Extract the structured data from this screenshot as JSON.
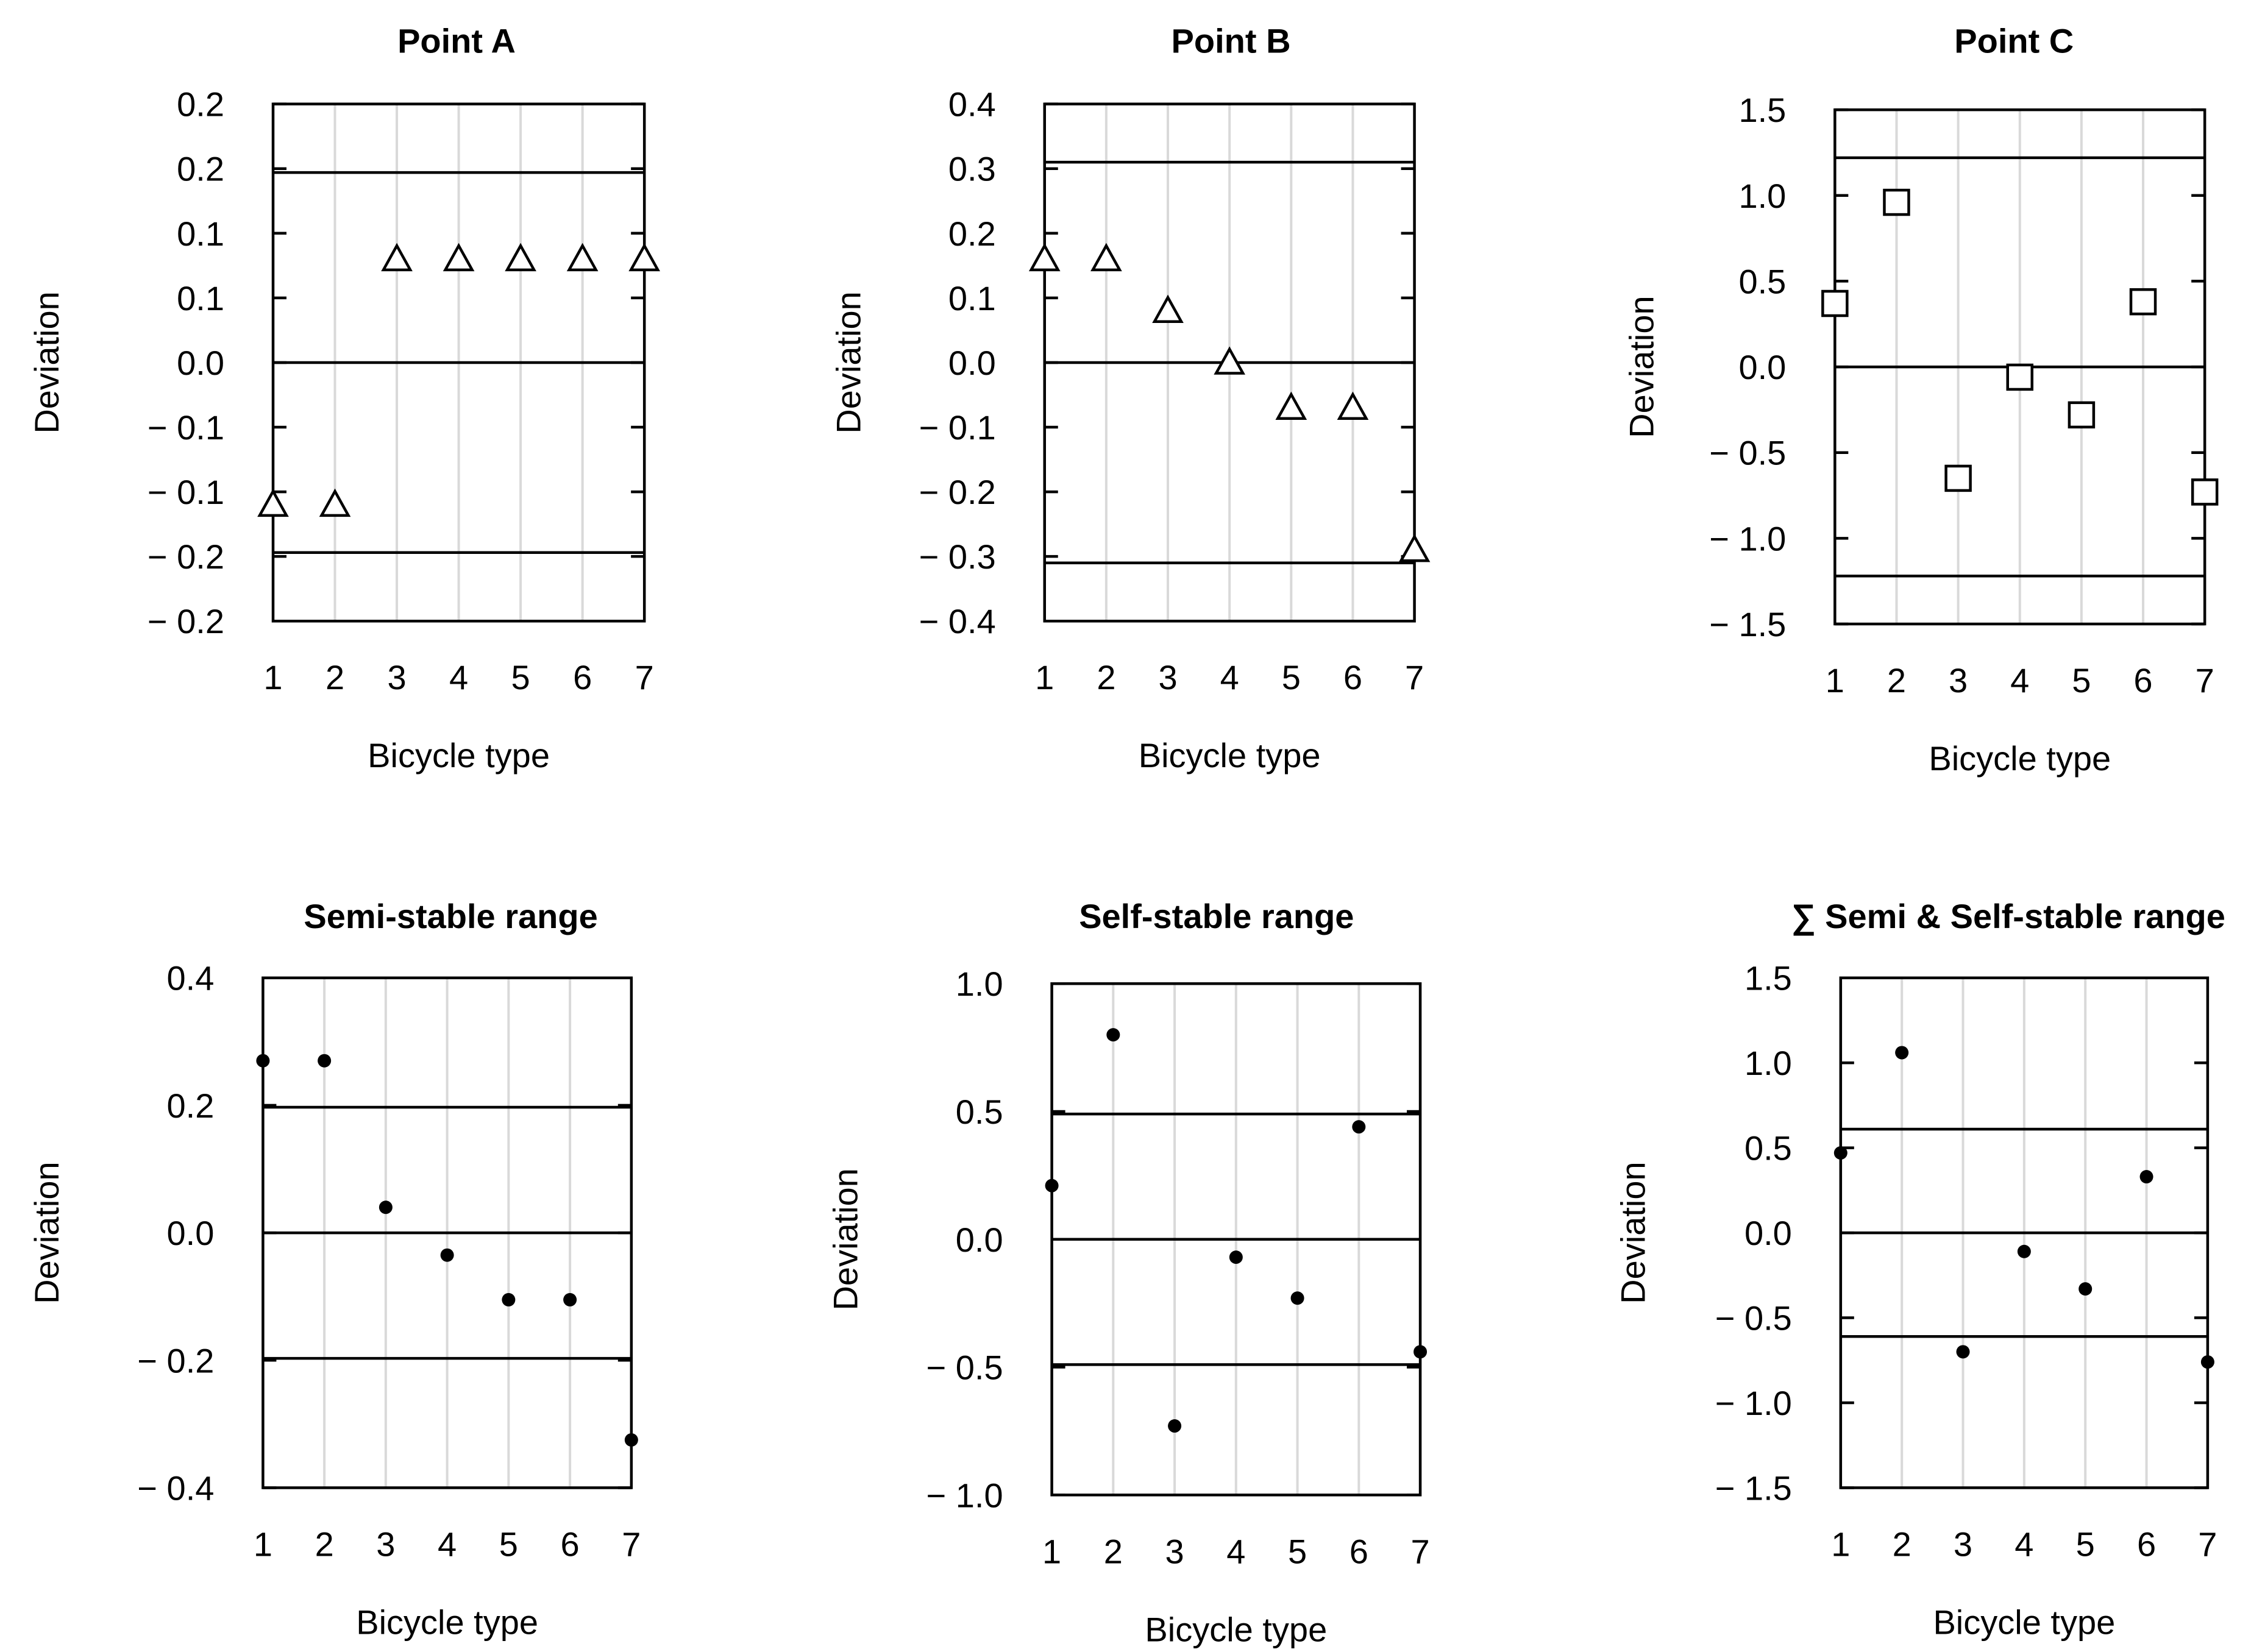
{
  "figure": {
    "background": "#ffffff",
    "ink": "#000000",
    "grid_color": "#d9d9d9"
  },
  "chart_data": [
    {
      "type": "scatter",
      "title": "Point A",
      "xlabel": "Bicycle type",
      "ylabel": "Deviation",
      "x": [
        1,
        2,
        3,
        4,
        5,
        6,
        7
      ],
      "values": [
        -0.11,
        -0.11,
        0.08,
        0.08,
        0.08,
        0.08,
        0.08
      ],
      "marker": "triangle",
      "ylim": [
        -0.2,
        0.2
      ],
      "yticks": [
        0.2,
        0.15,
        0.1,
        0.05,
        0.0,
        -0.05,
        -0.1,
        -0.15,
        -0.2
      ],
      "ytick_labels": [
        "0.2",
        "0.2",
        "0.1",
        "0.1",
        "0.0",
        "− 0.1",
        "− 0.1",
        "− 0.2",
        "− 0.2"
      ],
      "xticks": [
        1,
        2,
        3,
        4,
        5,
        6,
        7
      ],
      "hlines": [
        0.147,
        0.0,
        -0.147
      ]
    },
    {
      "type": "scatter",
      "title": "Point B",
      "xlabel": "Bicycle type",
      "ylabel": "Deviation",
      "x": [
        1,
        2,
        3,
        4,
        5,
        6,
        7
      ],
      "values": [
        0.16,
        0.16,
        0.08,
        0.0,
        -0.07,
        -0.07,
        -0.29
      ],
      "marker": "triangle",
      "ylim": [
        -0.4,
        0.4
      ],
      "yticks": [
        0.4,
        0.3,
        0.2,
        0.1,
        0.0,
        -0.1,
        -0.2,
        -0.3,
        -0.4
      ],
      "ytick_labels": [
        "0.4",
        "0.3",
        "0.2",
        "0.1",
        "0.0",
        "− 0.1",
        "− 0.2",
        "− 0.3",
        "− 0.4"
      ],
      "xticks": [
        1,
        2,
        3,
        4,
        5,
        6,
        7
      ],
      "hlines": [
        0.31,
        0.0,
        -0.31
      ]
    },
    {
      "type": "scatter",
      "title": "Point C",
      "xlabel": "Bicycle type",
      "ylabel": "Deviation",
      "x": [
        1,
        2,
        3,
        4,
        5,
        6,
        7
      ],
      "values": [
        0.37,
        0.96,
        -0.65,
        -0.06,
        -0.28,
        0.38,
        -0.73
      ],
      "marker": "square",
      "ylim": [
        -1.5,
        1.5
      ],
      "yticks": [
        1.5,
        1.0,
        0.5,
        0.0,
        -0.5,
        -1.0,
        -1.5
      ],
      "ytick_labels": [
        "1.5",
        "1.0",
        "0.5",
        "0.0",
        "− 0.5",
        "− 1.0",
        "− 1.5"
      ],
      "xticks": [
        1,
        2,
        3,
        4,
        5,
        6,
        7
      ],
      "hlines": [
        1.22,
        0.0,
        -1.22
      ]
    },
    {
      "type": "scatter",
      "title": "Semi-stable range",
      "xlabel": "Bicycle type",
      "ylabel": "Deviation",
      "x": [
        1,
        2,
        3,
        4,
        5,
        6,
        7
      ],
      "values": [
        0.27,
        0.27,
        0.04,
        -0.035,
        -0.105,
        -0.105,
        -0.325
      ],
      "marker": "dot",
      "ylim": [
        -0.4,
        0.4
      ],
      "yticks": [
        0.4,
        0.2,
        0.0,
        -0.2,
        -0.4
      ],
      "ytick_labels": [
        "0.4",
        "0.2",
        "0.0",
        "− 0.2",
        "− 0.4"
      ],
      "xticks": [
        1,
        2,
        3,
        4,
        5,
        6,
        7
      ],
      "hlines": [
        0.197,
        0.0,
        -0.197
      ]
    },
    {
      "type": "scatter",
      "title": "Self-stable range",
      "xlabel": "Bicycle type",
      "ylabel": "Deviation",
      "x": [
        1,
        2,
        3,
        4,
        5,
        6,
        7
      ],
      "values": [
        0.21,
        0.8,
        -0.73,
        -0.07,
        -0.23,
        0.44,
        -0.44
      ],
      "marker": "dot",
      "ylim": [
        -1.0,
        1.0
      ],
      "yticks": [
        1.0,
        0.5,
        0.0,
        -0.5,
        -1.0
      ],
      "ytick_labels": [
        "1.0",
        "0.5",
        "0.0",
        "− 0.5",
        "− 1.0"
      ],
      "xticks": [
        1,
        2,
        3,
        4,
        5,
        6,
        7
      ],
      "hlines": [
        0.49,
        0.0,
        -0.49
      ]
    },
    {
      "type": "scatter",
      "title": "∑ Semi & Self-stable range",
      "xlabel": "Bicycle type",
      "ylabel": "Deviation",
      "x": [
        1,
        2,
        3,
        4,
        5,
        6,
        7
      ],
      "values": [
        0.47,
        1.06,
        -0.7,
        -0.11,
        -0.33,
        0.33,
        -0.76
      ],
      "marker": "dot",
      "ylim": [
        -1.5,
        1.5
      ],
      "yticks": [
        1.5,
        1.0,
        0.5,
        0.0,
        -0.5,
        -1.0,
        -1.5
      ],
      "ytick_labels": [
        "1.5",
        "1.0",
        "0.5",
        "0.0",
        "− 0.5",
        "− 1.0",
        "− 1.5"
      ],
      "xticks": [
        1,
        2,
        3,
        4,
        5,
        6,
        7
      ],
      "hlines": [
        0.61,
        0.0,
        -0.61
      ]
    }
  ]
}
